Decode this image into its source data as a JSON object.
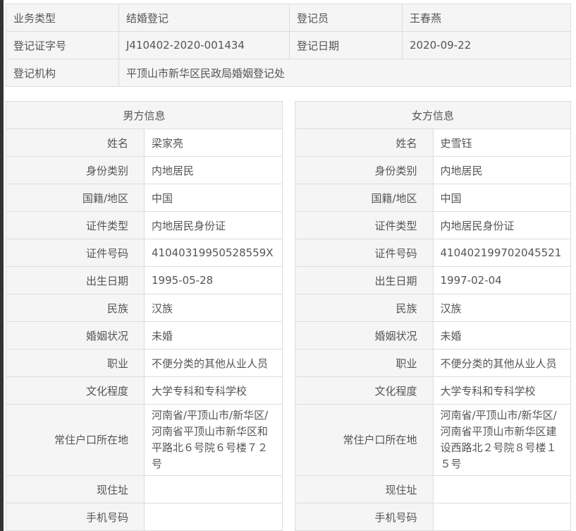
{
  "summary": {
    "rows": [
      [
        {
          "k": "业务类型",
          "v": "结婚登记"
        },
        {
          "k": "登记员",
          "v": "王春燕"
        }
      ],
      [
        {
          "k": "登记证字号",
          "v": "J410402-2020-001434"
        },
        {
          "k": "登记日期",
          "v": "2020-09-22"
        }
      ]
    ],
    "org_label": "登记机构",
    "org_value": "平顶山市新华区民政局婚姻登记处"
  },
  "labels": [
    "姓名",
    "身份类别",
    "国籍/地区",
    "证件类型",
    "证件号码",
    "出生日期",
    "民族",
    "婚姻状况",
    "职业",
    "文化程度",
    "常住户口所在地",
    "现住址",
    "手机号码"
  ],
  "male": {
    "title": "男方信息",
    "values": [
      "梁家亮",
      "内地居民",
      "中国",
      "内地居民身份证",
      "41040319950528559X",
      "1995-05-28",
      "汉族",
      "未婚",
      "不便分类的其他从业人员",
      "大学专科和专科学校",
      "河南省/平顶山市/新华区/河南省平顶山市新华区和平路北６号院６号楼７２号",
      "",
      ""
    ]
  },
  "female": {
    "title": "女方信息",
    "values": [
      "史雪钰",
      "内地居民",
      "中国",
      "内地居民身份证",
      "410402199702045521",
      "1997-02-04",
      "汉族",
      "未婚",
      "不便分类的其他从业人员",
      "大学专科和专科学校",
      "河南省/平顶山市/新华区/河南省平顶山市新华区建设西路北２号院８号楼１５号",
      "",
      ""
    ]
  }
}
